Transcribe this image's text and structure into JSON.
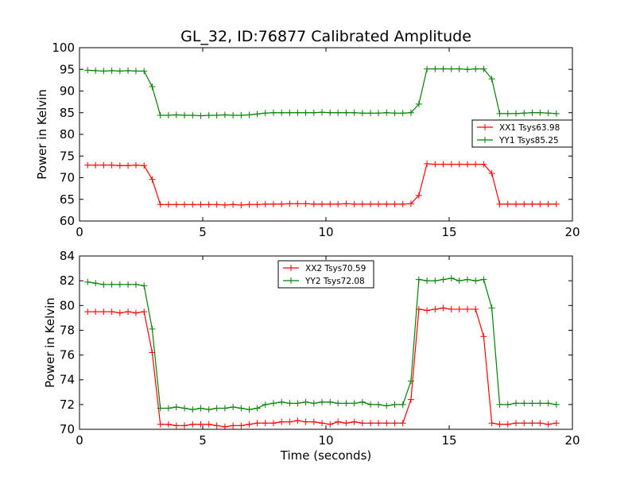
{
  "chart_data": [
    {
      "type": "line",
      "title": "GL_32, ID:76877 Calibrated Amplitude",
      "xlabel": "",
      "ylabel": "Power in Kelvin",
      "xlim": [
        0,
        20
      ],
      "ylim": [
        60,
        100
      ],
      "xticks": [
        "0",
        "5",
        "10",
        "15",
        "20"
      ],
      "yticks": [
        "60",
        "65",
        "70",
        "75",
        "80",
        "85",
        "90",
        "95",
        "100"
      ],
      "legend_position": "center-right",
      "series": [
        {
          "name": "XX1 Tsys63.98",
          "color": "#ff0000",
          "x": [
            0.33,
            0.65,
            0.98,
            1.31,
            1.64,
            1.97,
            2.29,
            2.62,
            2.95,
            3.28,
            3.61,
            3.93,
            4.26,
            4.59,
            4.92,
            5.25,
            5.57,
            5.9,
            6.23,
            6.56,
            6.89,
            7.21,
            7.54,
            7.87,
            8.2,
            8.53,
            8.85,
            9.18,
            9.51,
            9.84,
            10.17,
            10.49,
            10.82,
            11.15,
            11.48,
            11.81,
            12.13,
            12.46,
            12.79,
            13.12,
            13.45,
            13.77,
            14.1,
            14.43,
            14.76,
            15.09,
            15.41,
            15.74,
            16.07,
            16.4,
            16.73,
            17.05,
            17.38,
            17.71,
            18.04,
            18.37,
            18.69,
            19.02,
            19.35
          ],
          "y": [
            72.9,
            72.9,
            72.9,
            72.9,
            72.8,
            72.8,
            72.9,
            72.8,
            69.6,
            63.8,
            63.8,
            63.8,
            63.8,
            63.8,
            63.8,
            63.8,
            63.8,
            63.7,
            63.8,
            63.7,
            63.8,
            63.8,
            63.9,
            63.9,
            63.9,
            64.0,
            64.0,
            64.0,
            63.9,
            63.9,
            63.9,
            63.9,
            64.0,
            63.9,
            63.9,
            63.9,
            63.9,
            63.9,
            63.9,
            63.9,
            64.0,
            65.9,
            73.2,
            73.1,
            73.1,
            73.1,
            73.1,
            73.1,
            73.1,
            73.1,
            71.0,
            63.9,
            63.9,
            63.9,
            63.9,
            63.9,
            63.9,
            63.9,
            63.9
          ]
        },
        {
          "name": "YY1 Tsys85.25",
          "color": "#008000",
          "x": [
            0.33,
            0.65,
            0.98,
            1.31,
            1.64,
            1.97,
            2.29,
            2.62,
            2.95,
            3.28,
            3.61,
            3.93,
            4.26,
            4.59,
            4.92,
            5.25,
            5.57,
            5.9,
            6.23,
            6.56,
            6.89,
            7.21,
            7.54,
            7.87,
            8.2,
            8.53,
            8.85,
            9.18,
            9.51,
            9.84,
            10.17,
            10.49,
            10.82,
            11.15,
            11.48,
            11.81,
            12.13,
            12.46,
            12.79,
            13.12,
            13.45,
            13.77,
            14.1,
            14.43,
            14.76,
            15.09,
            15.41,
            15.74,
            16.07,
            16.4,
            16.73,
            17.05,
            17.38,
            17.71,
            18.04,
            18.37,
            18.69,
            19.02,
            19.35
          ],
          "y": [
            94.8,
            94.7,
            94.6,
            94.7,
            94.6,
            94.7,
            94.6,
            94.6,
            91.0,
            84.4,
            84.4,
            84.5,
            84.4,
            84.4,
            84.3,
            84.4,
            84.4,
            84.5,
            84.4,
            84.4,
            84.5,
            84.7,
            84.9,
            85.0,
            85.0,
            85.0,
            85.0,
            85.0,
            85.0,
            85.1,
            85.0,
            85.0,
            85.0,
            85.0,
            84.9,
            84.9,
            84.9,
            85.0,
            84.9,
            84.9,
            85.0,
            87.0,
            95.1,
            95.1,
            95.1,
            95.1,
            95.1,
            95.0,
            95.1,
            95.1,
            92.8,
            84.8,
            84.8,
            84.8,
            84.9,
            85.0,
            85.0,
            84.9,
            84.8
          ]
        }
      ]
    },
    {
      "type": "line",
      "title": "",
      "xlabel": "Time (seconds)",
      "ylabel": "Power in Kelvin",
      "xlim": [
        0,
        20
      ],
      "ylim": [
        70,
        84
      ],
      "xticks": [
        "0",
        "5",
        "10",
        "15",
        "20"
      ],
      "yticks": [
        "70",
        "72",
        "74",
        "76",
        "78",
        "80",
        "82",
        "84"
      ],
      "legend_position": "upper-center",
      "series": [
        {
          "name": "XX2 Tsys70.59",
          "color": "#ff0000",
          "x": [
            0.33,
            0.65,
            0.98,
            1.31,
            1.64,
            1.97,
            2.29,
            2.62,
            2.95,
            3.28,
            3.61,
            3.93,
            4.26,
            4.59,
            4.92,
            5.25,
            5.57,
            5.9,
            6.23,
            6.56,
            6.89,
            7.21,
            7.54,
            7.87,
            8.2,
            8.53,
            8.85,
            9.18,
            9.51,
            9.84,
            10.17,
            10.49,
            10.82,
            11.15,
            11.48,
            11.81,
            12.13,
            12.46,
            12.79,
            13.12,
            13.45,
            13.77,
            14.1,
            14.43,
            14.76,
            15.09,
            15.41,
            15.74,
            16.07,
            16.4,
            16.73,
            17.05,
            17.38,
            17.71,
            18.04,
            18.37,
            18.69,
            19.02,
            19.35
          ],
          "y": [
            79.5,
            79.5,
            79.5,
            79.5,
            79.4,
            79.5,
            79.4,
            79.5,
            76.2,
            70.4,
            70.4,
            70.3,
            70.3,
            70.4,
            70.4,
            70.4,
            70.3,
            70.2,
            70.3,
            70.3,
            70.4,
            70.5,
            70.5,
            70.5,
            70.6,
            70.6,
            70.7,
            70.6,
            70.6,
            70.5,
            70.4,
            70.6,
            70.5,
            70.6,
            70.5,
            70.5,
            70.5,
            70.5,
            70.5,
            70.5,
            72.4,
            79.7,
            79.6,
            79.7,
            79.8,
            79.7,
            79.7,
            79.7,
            79.7,
            77.5,
            70.5,
            70.4,
            70.4,
            70.5,
            70.5,
            70.5,
            70.5,
            70.4,
            70.5
          ]
        },
        {
          "name": "YY2 Tsys72.08",
          "color": "#008000",
          "x": [
            0.33,
            0.65,
            0.98,
            1.31,
            1.64,
            1.97,
            2.29,
            2.62,
            2.95,
            3.28,
            3.61,
            3.93,
            4.26,
            4.59,
            4.92,
            5.25,
            5.57,
            5.9,
            6.23,
            6.56,
            6.89,
            7.21,
            7.54,
            7.87,
            8.2,
            8.53,
            8.85,
            9.18,
            9.51,
            9.84,
            10.17,
            10.49,
            10.82,
            11.15,
            11.48,
            11.81,
            12.13,
            12.46,
            12.79,
            13.12,
            13.45,
            13.77,
            14.1,
            14.43,
            14.76,
            15.09,
            15.41,
            15.74,
            16.07,
            16.4,
            16.73,
            17.05,
            17.38,
            17.71,
            18.04,
            18.37,
            18.69,
            19.02,
            19.35
          ],
          "y": [
            81.9,
            81.8,
            81.7,
            81.7,
            81.7,
            81.7,
            81.7,
            81.6,
            78.1,
            71.7,
            71.7,
            71.8,
            71.7,
            71.6,
            71.7,
            71.6,
            71.7,
            71.7,
            71.8,
            71.7,
            71.6,
            71.7,
            72.0,
            72.1,
            72.2,
            72.1,
            72.1,
            72.2,
            72.1,
            72.2,
            72.2,
            72.1,
            72.1,
            72.1,
            72.2,
            72.0,
            72.0,
            71.9,
            72.0,
            72.0,
            73.9,
            82.1,
            82.0,
            82.0,
            82.1,
            82.2,
            82.0,
            82.1,
            82.0,
            82.1,
            79.8,
            72.0,
            72.0,
            72.1,
            72.1,
            72.1,
            72.1,
            72.1,
            72.0
          ]
        }
      ]
    }
  ]
}
